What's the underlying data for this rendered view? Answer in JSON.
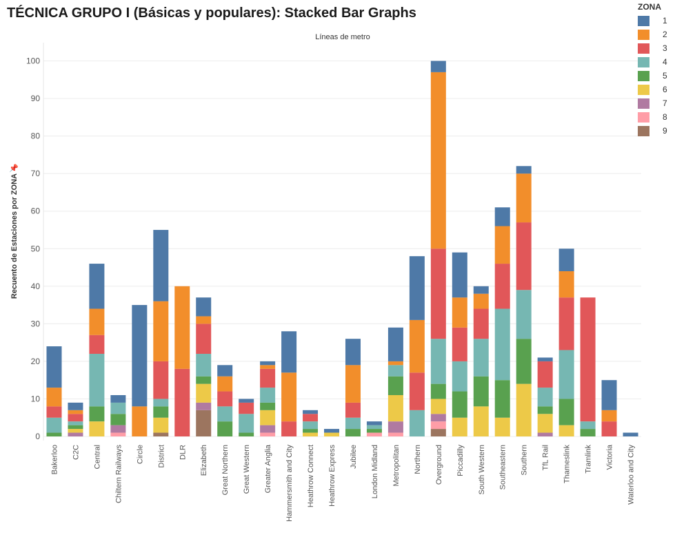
{
  "title": "TÉCNICA GRUPO I (Básicas y populares): Stacked Bar Graphs",
  "legend": {
    "title": "ZONA",
    "items": [
      {
        "label": "1",
        "color": "#4e79a7"
      },
      {
        "label": "2",
        "color": "#f28e2b"
      },
      {
        "label": "3",
        "color": "#e15759"
      },
      {
        "label": "4",
        "color": "#76b7b2"
      },
      {
        "label": "5",
        "color": "#59a14f"
      },
      {
        "label": "6",
        "color": "#edc948"
      },
      {
        "label": "7",
        "color": "#b07aa1"
      },
      {
        "label": "8",
        "color": "#ff9da7"
      },
      {
        "label": "9",
        "color": "#9c755f"
      }
    ]
  },
  "chart_data": {
    "type": "bar",
    "stacked": true,
    "title": "Líneas de metro",
    "xlabel": "",
    "ylabel": "Recuento de Estaciones por ZONA",
    "ylim": [
      0,
      105
    ],
    "yticks": [
      0,
      10,
      20,
      30,
      40,
      50,
      60,
      70,
      80,
      90,
      100
    ],
    "grid": true,
    "legend_position": "top-right",
    "categories": [
      "Bakerloo",
      "C2C",
      "Central",
      "Chiltern Railways",
      "Circle",
      "District",
      "DLR",
      "Elizabeth",
      "Great Northern",
      "Great Western",
      "Greater Anglia",
      "Hammersmith and City",
      "Heathrow Connect",
      "Heathrow Express",
      "Jubilee",
      "London Midland",
      "Metropolitan",
      "Northern",
      "Overground",
      "Piccadilly",
      "South Western",
      "Southeastern",
      "Southern",
      "TfL Rail",
      "Thameslink",
      "Tramlink",
      "Victoria",
      "Waterloo and City"
    ],
    "series": [
      {
        "name": "1",
        "values": [
          11,
          2,
          12,
          2,
          27,
          19,
          0,
          5,
          3,
          1,
          1,
          11,
          1,
          1,
          7,
          1,
          9,
          17,
          3,
          12,
          2,
          5,
          2,
          1,
          6,
          0,
          8,
          1
        ]
      },
      {
        "name": "2",
        "values": [
          5,
          1,
          7,
          0,
          8,
          16,
          22,
          2,
          4,
          0,
          1,
          13,
          0,
          0,
          10,
          0,
          1,
          14,
          47,
          8,
          4,
          10,
          13,
          0,
          7,
          0,
          3,
          0
        ]
      },
      {
        "name": "3",
        "values": [
          3,
          2,
          5,
          0,
          0,
          10,
          18,
          8,
          4,
          3,
          5,
          4,
          2,
          0,
          4,
          0,
          0,
          10,
          24,
          9,
          8,
          12,
          18,
          7,
          14,
          33,
          4,
          0
        ]
      },
      {
        "name": "4",
        "values": [
          4,
          1,
          14,
          3,
          0,
          2,
          0,
          6,
          4,
          5,
          4,
          0,
          2,
          0,
          3,
          1,
          3,
          7,
          12,
          8,
          10,
          19,
          13,
          5,
          13,
          2,
          0,
          0
        ]
      },
      {
        "name": "5",
        "values": [
          1,
          1,
          4,
          3,
          0,
          3,
          0,
          2,
          4,
          1,
          2,
          0,
          1,
          0,
          2,
          1,
          5,
          0,
          4,
          7,
          8,
          10,
          12,
          2,
          7,
          2,
          0,
          0
        ]
      },
      {
        "name": "6",
        "values": [
          0,
          1,
          4,
          0,
          0,
          4,
          0,
          5,
          0,
          0,
          4,
          0,
          1,
          1,
          0,
          0,
          7,
          0,
          4,
          5,
          8,
          5,
          14,
          5,
          3,
          0,
          0,
          0
        ]
      },
      {
        "name": "7",
        "values": [
          0,
          1,
          0,
          2,
          0,
          0,
          0,
          2,
          0,
          0,
          2,
          0,
          0,
          0,
          0,
          0,
          3,
          0,
          2,
          0,
          0,
          0,
          0,
          1,
          0,
          0,
          0,
          0
        ]
      },
      {
        "name": "8",
        "values": [
          0,
          0,
          0,
          1,
          0,
          0,
          0,
          0,
          0,
          0,
          1,
          0,
          0,
          0,
          0,
          1,
          1,
          0,
          2,
          0,
          0,
          0,
          0,
          0,
          0,
          0,
          0,
          0
        ]
      },
      {
        "name": "9",
        "values": [
          0,
          0,
          0,
          0,
          0,
          1,
          0,
          7,
          0,
          0,
          0,
          0,
          0,
          0,
          0,
          0,
          0,
          0,
          2,
          0,
          0,
          0,
          0,
          0,
          0,
          0,
          0,
          0
        ]
      }
    ]
  }
}
